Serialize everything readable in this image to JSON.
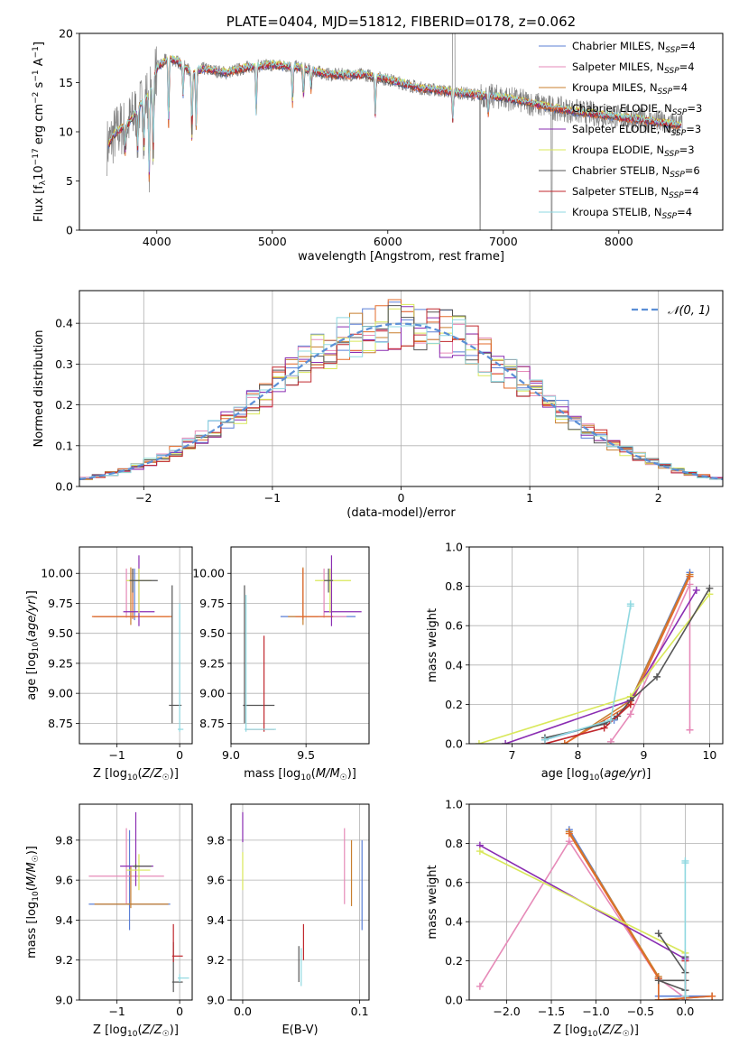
{
  "figure_title": "PLATE=0404, MJD=51812, FIBERID=0178, z=0.062",
  "colors": {
    "Chabrier MILES": "#5b7fd6",
    "Salpeter MILES": "#e68ab8",
    "Kroupa MILES": "#c87f2e",
    "Chabrier ELODIE": "#e36b2b",
    "Salpeter ELODIE": "#8a2db2",
    "Kroupa ELODIE": "#d9e85a",
    "Chabrier STELIB": "#555555",
    "Salpeter STELIB": "#c0272d",
    "Kroupa STELIB": "#8fd8e0",
    "data": "#808080",
    "gaussian": "#5b8fd6"
  },
  "chart_data": [
    {
      "id": "spectrum",
      "type": "line",
      "title": "PLATE=0404, MJD=51812, FIBERID=0178, z=0.062",
      "xlabel": "wavelength [Angstrom, rest frame]",
      "ylabel": "Flux [f_λ10^-17 erg cm^-2 s^-1 A^-1]",
      "xlim": [
        3330,
        8900
      ],
      "ylim": [
        0,
        20
      ],
      "xticks": [
        "4000",
        "5000",
        "6000",
        "7000",
        "8000"
      ],
      "yticks": [
        "0",
        "5",
        "10",
        "15",
        "20"
      ],
      "grid": false,
      "legend_position": "upper right",
      "series": [
        {
          "name": "Chabrier MILES, N_SSP=4"
        },
        {
          "name": "Salpeter MILES, N_SSP=4"
        },
        {
          "name": "Kroupa MILES, N_SSP=4"
        },
        {
          "name": "Chabrier ELODIE, N_SSP=3"
        },
        {
          "name": "Salpeter ELODIE, N_SSP=3"
        },
        {
          "name": "Kroupa ELODIE, N_SSP=3"
        },
        {
          "name": "Chabrier STELIB, N_SSP=6"
        },
        {
          "name": "Salpeter STELIB, N_SSP=4"
        },
        {
          "name": "Kroupa STELIB, N_SSP=4"
        }
      ],
      "continuum": {
        "x": [
          3570,
          3650,
          3750,
          3850,
          3950,
          4000,
          4100,
          4200,
          4300,
          4400,
          4600,
          4800,
          5000,
          5200,
          5500,
          5800,
          6000,
          6300,
          6600,
          6800,
          7000,
          7200,
          7400,
          7600,
          7800,
          8000,
          8200,
          8500
        ],
        "y": [
          8.5,
          10.0,
          10.8,
          12.5,
          14.2,
          16.5,
          17.5,
          17.0,
          16.0,
          16.4,
          16.0,
          16.6,
          16.8,
          16.6,
          15.8,
          15.8,
          15.3,
          14.4,
          14.0,
          13.7,
          13.5,
          13.0,
          12.5,
          12.1,
          11.8,
          11.5,
          11.2,
          10.7
        ]
      }
    },
    {
      "id": "residuals",
      "type": "histogram",
      "xlabel": "(data-model)/error",
      "ylabel": "Normed distribution",
      "xlim": [
        -2.5,
        2.5
      ],
      "ylim": [
        0,
        0.48
      ],
      "xticks": [
        "-2",
        "-1",
        "0",
        "1",
        "2"
      ],
      "yticks": [
        "0.0",
        "0.1",
        "0.2",
        "0.3",
        "0.4"
      ],
      "grid": true,
      "legend_position": "upper right",
      "gaussian_label": "𝒩(0, 1)",
      "bin_width": 0.1,
      "bins_start": -2.5
    },
    {
      "id": "age_vs_Z",
      "type": "errorbar",
      "xlabel": "Z [log10(Z/Z☉)]",
      "ylabel": "age [log10(age/yr)]",
      "xlim": [
        -1.6,
        0.2
      ],
      "ylim": [
        8.58,
        10.22
      ],
      "xticks": [
        "-1",
        "0"
      ],
      "yticks": [
        "8.75",
        "9.00",
        "9.25",
        "9.50",
        "9.75",
        "10.00"
      ],
      "points": [
        {
          "x": -0.72,
          "y": 9.64,
          "xerr": [
            0.65,
            0.02
          ],
          "yerr": [
            0.03,
            0.4
          ],
          "s": "Chabrier MILES"
        },
        {
          "x": -0.85,
          "y": 9.64,
          "xerr": [
            0.1,
            0.05
          ],
          "yerr": [
            0.01,
            0.4
          ],
          "s": "Salpeter MILES"
        },
        {
          "x": -0.78,
          "y": 9.64,
          "xerr": [
            0.6,
            0.62
          ],
          "yerr": [
            0.07,
            0.41
          ],
          "s": "Kroupa MILES"
        },
        {
          "x": -0.75,
          "y": 9.64,
          "xerr": [
            0.65,
            0.63
          ],
          "yerr": [
            0.02,
            0.4
          ],
          "s": "Chabrier ELODIE"
        },
        {
          "x": -0.65,
          "y": 9.68,
          "xerr": [
            0.25,
            0.25
          ],
          "yerr": [
            0.12,
            0.47
          ],
          "s": "Salpeter ELODIE"
        },
        {
          "x": -0.65,
          "y": 9.94,
          "xerr": [
            0.2,
            0.2
          ],
          "yerr": [
            0.27,
            0.1
          ],
          "s": "Kroupa ELODIE"
        },
        {
          "x": -0.12,
          "y": 8.9,
          "xerr": [
            0.05,
            0.15
          ],
          "yerr": [
            0.15,
            1.0
          ],
          "s": "Chabrier STELIB"
        },
        {
          "x": 0.0,
          "y": 8.7,
          "xerr": [
            0.03,
            0.06
          ],
          "yerr": [
            0.02,
            1.05
          ],
          "s": "Kroupa STELIB"
        },
        {
          "x": -0.75,
          "y": 9.94,
          "xerr": [
            0.05,
            0.4
          ],
          "yerr": [
            0.1,
            0.1
          ],
          "s": "Chabrier STELIB"
        }
      ]
    },
    {
      "id": "age_vs_mass",
      "type": "errorbar",
      "xlabel": "mass [log10(M/M☉)]",
      "ylabel": "",
      "xlim": [
        9.0,
        9.92
      ],
      "ylim": [
        8.58,
        10.22
      ],
      "xticks": [
        "9.0",
        "9.5"
      ],
      "yticks": [
        "8.75",
        "9.00",
        "9.25",
        "9.50",
        "9.75",
        "10.00"
      ],
      "points": [
        {
          "x": 9.48,
          "y": 9.64,
          "xerr": [
            0.15,
            0.35
          ],
          "yerr": [
            0.03,
            0.4
          ],
          "s": "Chabrier MILES"
        },
        {
          "x": 9.62,
          "y": 9.64,
          "xerr": [
            0.15,
            0.15
          ],
          "yerr": [
            0.01,
            0.4
          ],
          "s": "Salpeter MILES"
        },
        {
          "x": 9.48,
          "y": 9.64,
          "xerr": [
            0.1,
            0.1
          ],
          "yerr": [
            0.07,
            0.41
          ],
          "s": "Kroupa MILES"
        },
        {
          "x": 9.48,
          "y": 9.64,
          "xerr": [
            0.05,
            0.2
          ],
          "yerr": [
            0.02,
            0.4
          ],
          "s": "Chabrier ELODIE"
        },
        {
          "x": 9.67,
          "y": 9.68,
          "xerr": [
            0.05,
            0.2
          ],
          "yerr": [
            0.12,
            0.47
          ],
          "s": "Salpeter ELODIE"
        },
        {
          "x": 9.66,
          "y": 9.94,
          "xerr": [
            0.1,
            0.14
          ],
          "yerr": [
            0.27,
            0.1
          ],
          "s": "Kroupa ELODIE"
        },
        {
          "x": 9.09,
          "y": 8.9,
          "xerr": [
            0.01,
            0.2
          ],
          "yerr": [
            0.15,
            1.0
          ],
          "s": "Chabrier STELIB"
        },
        {
          "x": 9.22,
          "y": 8.7,
          "xerr": [
            0.12,
            0.07
          ],
          "yerr": [
            0.02,
            0.78
          ],
          "s": "Salpeter STELIB"
        },
        {
          "x": 9.1,
          "y": 8.7,
          "xerr": [
            0.01,
            0.2
          ],
          "yerr": [
            0.02,
            1.12
          ],
          "s": "Kroupa STELIB"
        },
        {
          "x": 9.65,
          "y": 9.94,
          "xerr": [
            0.03,
            0.03
          ],
          "yerr": [
            0.1,
            0.1
          ],
          "s": "Chabrier STELIB"
        }
      ]
    },
    {
      "id": "weight_vs_age",
      "type": "line",
      "xlabel": "age [log10(age/yr)]",
      "ylabel": "mass weight",
      "xlim": [
        6.35,
        10.2
      ],
      "ylim": [
        0,
        1.0
      ],
      "xticks": [
        "7",
        "8",
        "9",
        "10"
      ],
      "yticks": [
        "0.0",
        "0.2",
        "0.4",
        "0.6",
        "0.8",
        "1.0"
      ],
      "grid": true,
      "series": [
        {
          "s": "Chabrier MILES",
          "x": [
            7.5,
            8.55,
            8.8,
            9.7
          ],
          "y": [
            0.02,
            0.12,
            0.22,
            0.87
          ]
        },
        {
          "s": "Salpeter MILES",
          "x": [
            8.5,
            8.8,
            9.7,
            9.7
          ],
          "y": [
            0.01,
            0.15,
            0.81,
            0.07
          ]
        },
        {
          "s": "Kroupa MILES",
          "x": [
            7.8,
            8.8,
            9.7
          ],
          "y": [
            0.0,
            0.22,
            0.86
          ]
        },
        {
          "s": "Chabrier ELODIE",
          "x": [
            7.8,
            8.8,
            9.7
          ],
          "y": [
            0.0,
            0.2,
            0.85
          ]
        },
        {
          "s": "Salpeter ELODIE",
          "x": [
            6.9,
            8.8,
            9.8
          ],
          "y": [
            0.0,
            0.22,
            0.78
          ]
        },
        {
          "s": "Kroupa ELODIE",
          "x": [
            6.5,
            8.8,
            10.0
          ],
          "y": [
            0.0,
            0.24,
            0.76
          ]
        },
        {
          "s": "Chabrier STELIB",
          "x": [
            7.5,
            8.4,
            8.6,
            8.8,
            9.2,
            10.0
          ],
          "y": [
            0.03,
            0.1,
            0.14,
            0.22,
            0.34,
            0.79
          ]
        },
        {
          "s": "Salpeter STELIB",
          "x": [
            7.5,
            8.4,
            8.8
          ],
          "y": [
            0.0,
            0.08,
            0.2
          ]
        },
        {
          "s": "Kroupa STELIB",
          "x": [
            7.5,
            8.5,
            8.8,
            8.8
          ],
          "y": [
            0.02,
            0.12,
            0.7,
            0.71
          ]
        }
      ]
    },
    {
      "id": "mass_vs_Z",
      "type": "errorbar",
      "xlabel": "Z [log10(Z/Z☉)]",
      "ylabel": "mass [log10(M/M☉)]",
      "xlim": [
        -1.6,
        0.2
      ],
      "ylim": [
        9.0,
        9.98
      ],
      "xticks": [
        "-1",
        "0"
      ],
      "yticks": [
        "9.0",
        "9.2",
        "9.4",
        "9.6",
        "9.8"
      ],
      "points": [
        {
          "x": -0.8,
          "y": 9.48,
          "xerr": [
            0.65,
            0.65
          ],
          "yerr": [
            0.13,
            0.37
          ],
          "s": "Chabrier MILES"
        },
        {
          "x": -0.85,
          "y": 9.62,
          "xerr": [
            0.6,
            0.6
          ],
          "yerr": [
            0.14,
            0.24
          ],
          "s": "Salpeter MILES"
        },
        {
          "x": -0.78,
          "y": 9.48,
          "xerr": [
            0.58,
            0.6
          ],
          "yerr": [
            0.02,
            0.19
          ],
          "s": "Kroupa MILES"
        },
        {
          "x": -0.7,
          "y": 9.67,
          "xerr": [
            0.25,
            0.28
          ],
          "yerr": [
            0.1,
            0.27
          ],
          "s": "Salpeter ELODIE"
        },
        {
          "x": -0.65,
          "y": 9.65,
          "xerr": [
            0.2,
            0.18
          ],
          "yerr": [
            0.1,
            0.08
          ],
          "s": "Kroupa ELODIE"
        },
        {
          "x": -0.1,
          "y": 9.09,
          "xerr": [
            0.02,
            0.15
          ],
          "yerr": [
            0.05,
            0.2
          ],
          "s": "Chabrier STELIB"
        },
        {
          "x": -0.1,
          "y": 9.22,
          "xerr": [
            0.02,
            0.15
          ],
          "yerr": [
            0.03,
            0.16
          ],
          "s": "Salpeter STELIB"
        },
        {
          "x": 0.0,
          "y": 9.11,
          "xerr": [
            0.03,
            0.15
          ],
          "yerr": [
            0.02,
            0.02
          ],
          "s": "Kroupa STELIB"
        },
        {
          "x": -0.7,
          "y": 9.67,
          "xerr": [
            0.05,
            0.25
          ],
          "yerr": [
            0.01,
            0.01
          ],
          "s": "Chabrier STELIB"
        }
      ]
    },
    {
      "id": "mass_vs_EBV",
      "type": "errorbar",
      "xlabel": "E(B-V)",
      "ylabel": "",
      "xlim": [
        -0.01,
        0.108
      ],
      "ylim": [
        9.0,
        9.98
      ],
      "xticks": [
        "0.0",
        "0.1"
      ],
      "yticks": [
        "9.0",
        "9.2",
        "9.4",
        "9.6",
        "9.8"
      ],
      "points": [
        {
          "x": 0.102,
          "y": 9.56,
          "yerr": [
            0.21,
            0.24
          ],
          "s": "Chabrier MILES"
        },
        {
          "x": 0.087,
          "y": 9.62,
          "yerr": [
            0.14,
            0.24
          ],
          "s": "Salpeter MILES"
        },
        {
          "x": 0.093,
          "y": 9.62,
          "yerr": [
            0.15,
            0.18
          ],
          "s": "Kroupa MILES"
        },
        {
          "x": 0.0,
          "y": 9.84,
          "yerr": [
            0.05,
            0.1
          ],
          "s": "Salpeter ELODIE"
        },
        {
          "x": 0.0,
          "y": 9.65,
          "yerr": [
            0.1,
            0.09
          ],
          "s": "Kroupa ELODIE"
        },
        {
          "x": 0.048,
          "y": 9.16,
          "yerr": [
            0.07,
            0.11
          ],
          "s": "Chabrier STELIB"
        },
        {
          "x": 0.052,
          "y": 9.25,
          "yerr": [
            0.05,
            0.13
          ],
          "s": "Salpeter STELIB"
        },
        {
          "x": 0.05,
          "y": 9.16,
          "yerr": [
            0.09,
            0.1
          ],
          "s": "Kroupa STELIB"
        }
      ]
    },
    {
      "id": "weight_vs_Z",
      "type": "line",
      "xlabel": "Z [log10(Z/Z☉)]",
      "ylabel": "mass weight",
      "xlim": [
        -2.42,
        0.42
      ],
      "ylim": [
        0,
        1.0
      ],
      "xticks": [
        "-2.0",
        "-1.5",
        "-1.0",
        "-0.5",
        "0.0"
      ],
      "yticks": [
        "0.0",
        "0.2",
        "0.4",
        "0.6",
        "0.8",
        "1.0"
      ],
      "grid": true,
      "series": [
        {
          "s": "Chabrier MILES",
          "x": [
            -1.3,
            -0.3,
            -0.3,
            0.3
          ],
          "y": [
            0.87,
            0.11,
            0.02,
            0.02
          ]
        },
        {
          "s": "Salpeter MILES",
          "x": [
            -2.3,
            -1.3,
            -0.3,
            0.0
          ],
          "y": [
            0.07,
            0.81,
            0.11,
            0.01
          ]
        },
        {
          "s": "Kroupa MILES",
          "x": [
            -1.3,
            -0.3,
            -0.3,
            0.3
          ],
          "y": [
            0.86,
            0.12,
            0.0,
            0.02
          ]
        },
        {
          "s": "Chabrier ELODIE",
          "x": [
            -1.3,
            -0.3,
            -0.3,
            0.3
          ],
          "y": [
            0.85,
            0.11,
            0.0,
            0.02
          ]
        },
        {
          "s": "Salpeter ELODIE",
          "x": [
            -2.3,
            0.0
          ],
          "y": [
            0.79,
            0.21
          ]
        },
        {
          "s": "Kroupa ELODIE",
          "x": [
            -2.3,
            0.0
          ],
          "y": [
            0.76,
            0.24
          ]
        },
        {
          "s": "Chabrier STELIB",
          "x": [
            -0.3,
            0.0,
            0.0,
            -0.3,
            0.0,
            0.0
          ],
          "y": [
            0.34,
            0.14,
            0.1,
            0.1,
            0.05,
            0.22
          ]
        },
        {
          "s": "Salpeter STELIB",
          "x": [
            0.0,
            0.0
          ],
          "y": [
            0.0,
            0.2
          ]
        },
        {
          "s": "Kroupa STELIB",
          "x": [
            0.0,
            0.0,
            0.0
          ],
          "y": [
            0.02,
            0.7,
            0.71
          ]
        }
      ]
    }
  ]
}
